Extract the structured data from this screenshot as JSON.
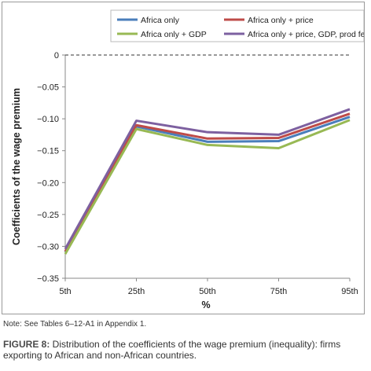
{
  "chart_data": {
    "type": "line",
    "categories": [
      "5th",
      "25th",
      "50th",
      "75th",
      "95th"
    ],
    "xlabel": "%",
    "ylabel": "Coefficients of the wage premium",
    "ylim": [
      -0.35,
      0
    ],
    "yticks": [
      0,
      -0.05,
      -0.1,
      -0.15,
      -0.2,
      -0.25,
      -0.3,
      -0.35
    ],
    "ytick_labels": [
      "0",
      "−0.05",
      "−0.10",
      "−0.15",
      "−0.20",
      "−0.25",
      "−0.30",
      "−0.35"
    ],
    "zero_line": "dashed",
    "legend_position": "top",
    "series": [
      {
        "name": "Africa only",
        "color": "#4a7ebb",
        "values": [
          -0.309,
          -0.112,
          -0.136,
          -0.135,
          -0.097
        ]
      },
      {
        "name": "Africa only + price",
        "color": "#be4b48",
        "values": [
          -0.308,
          -0.11,
          -0.131,
          -0.13,
          -0.092
        ]
      },
      {
        "name": "Africa only + GDP",
        "color": "#98b954",
        "values": [
          -0.312,
          -0.116,
          -0.141,
          -0.146,
          -0.102
        ]
      },
      {
        "name": "Africa only + price, GDP, prod fe",
        "color": "#7d60a0",
        "values": [
          -0.304,
          -0.103,
          -0.121,
          -0.125,
          -0.085
        ]
      }
    ]
  },
  "note": "Note: See Tables 6–12-A1 in Appendix 1.",
  "caption": {
    "label": "FIGURE 8:",
    "text": " Distribution of the coefficients of the wage premium (inequality): firms exporting to African and non-African countries."
  }
}
